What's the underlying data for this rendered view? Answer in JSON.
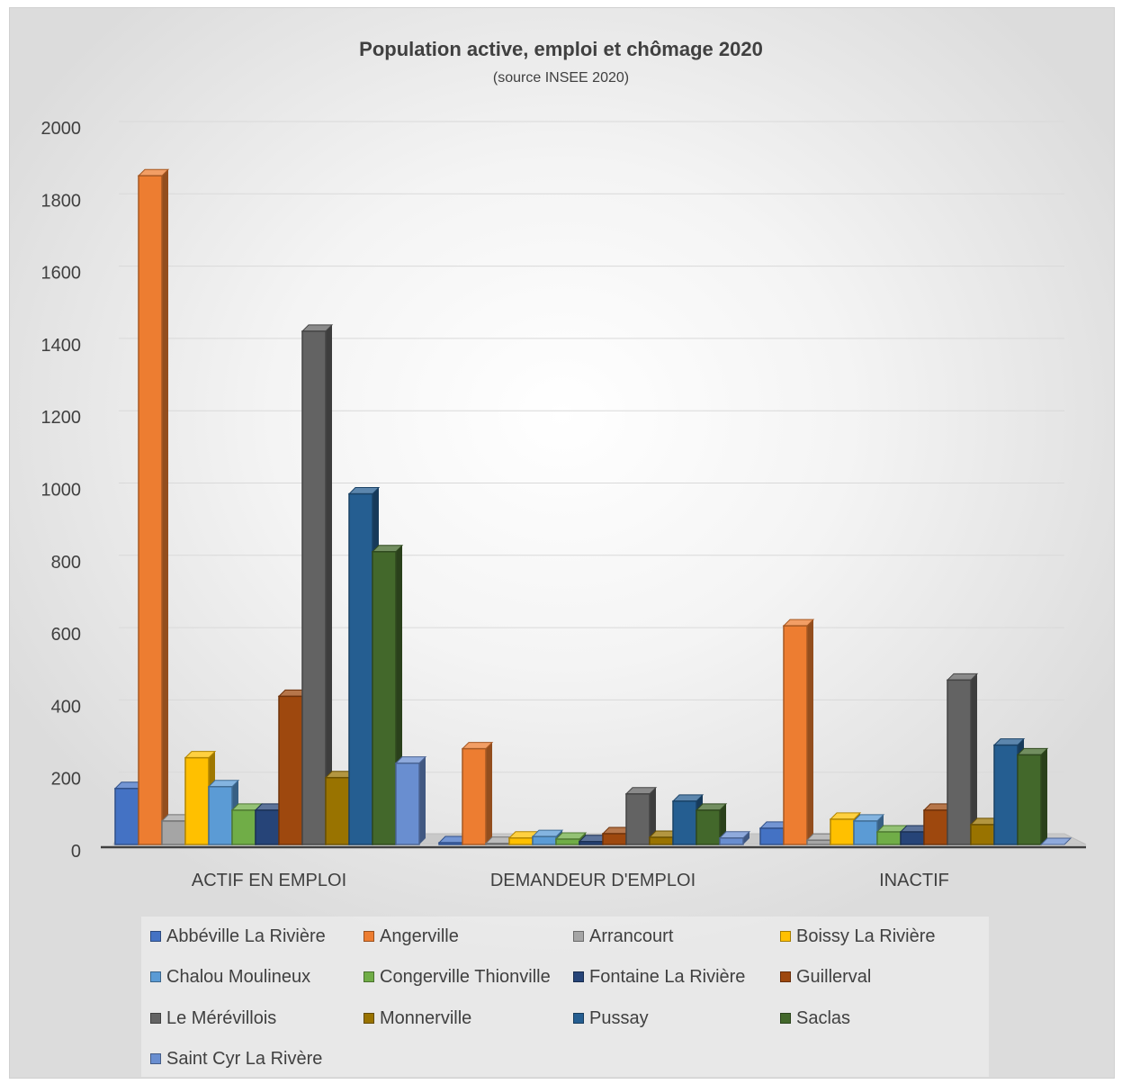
{
  "chart_data": {
    "type": "bar",
    "title": "Population active, emploi et chômage 2020",
    "subtitle": "(source INSEE 2020)",
    "categories": [
      "ACTIF EN EMPLOI",
      "DEMANDEUR D'EMPLOI",
      "INACTIF"
    ],
    "ylim": [
      0,
      2000
    ],
    "yticks": [
      "0",
      "200",
      "400",
      "600",
      "800",
      "1000",
      "1200",
      "1400",
      "1600",
      "1800",
      "2000"
    ],
    "grid": true,
    "legend_position": "bottom",
    "series": [
      {
        "name": "Abbéville La Rivière",
        "color": "#4472C4",
        "values": [
          155,
          5,
          45
        ]
      },
      {
        "name": "Angerville",
        "color": "#ED7D31",
        "values": [
          1850,
          265,
          605
        ]
      },
      {
        "name": "Arrancourt",
        "color": "#A5A5A5",
        "values": [
          65,
          3,
          12
        ]
      },
      {
        "name": "Boissy La Rivière",
        "color": "#FFC000",
        "values": [
          240,
          18,
          70
        ]
      },
      {
        "name": "Chalou Moulineux",
        "color": "#5B9BD5",
        "values": [
          160,
          22,
          65
        ]
      },
      {
        "name": "Congerville Thionville",
        "color": "#70AD47",
        "values": [
          95,
          15,
          35
        ]
      },
      {
        "name": "Fontaine La Rivière",
        "color": "#264478",
        "values": [
          95,
          8,
          35
        ]
      },
      {
        "name": "Guillerval",
        "color": "#9E480E",
        "values": [
          410,
          30,
          95
        ]
      },
      {
        "name": "Le Mérévillois",
        "color": "#636363",
        "values": [
          1420,
          140,
          455
        ]
      },
      {
        "name": "Monnerville",
        "color": "#997300",
        "values": [
          185,
          20,
          55
        ]
      },
      {
        "name": "Pussay",
        "color": "#255E91",
        "values": [
          970,
          120,
          275
        ]
      },
      {
        "name": "Saclas",
        "color": "#43682B",
        "values": [
          810,
          95,
          248
        ]
      },
      {
        "name": "Saint Cyr La Rivère",
        "color": "#698ED0",
        "values": [
          225,
          18,
          0
        ]
      }
    ]
  }
}
